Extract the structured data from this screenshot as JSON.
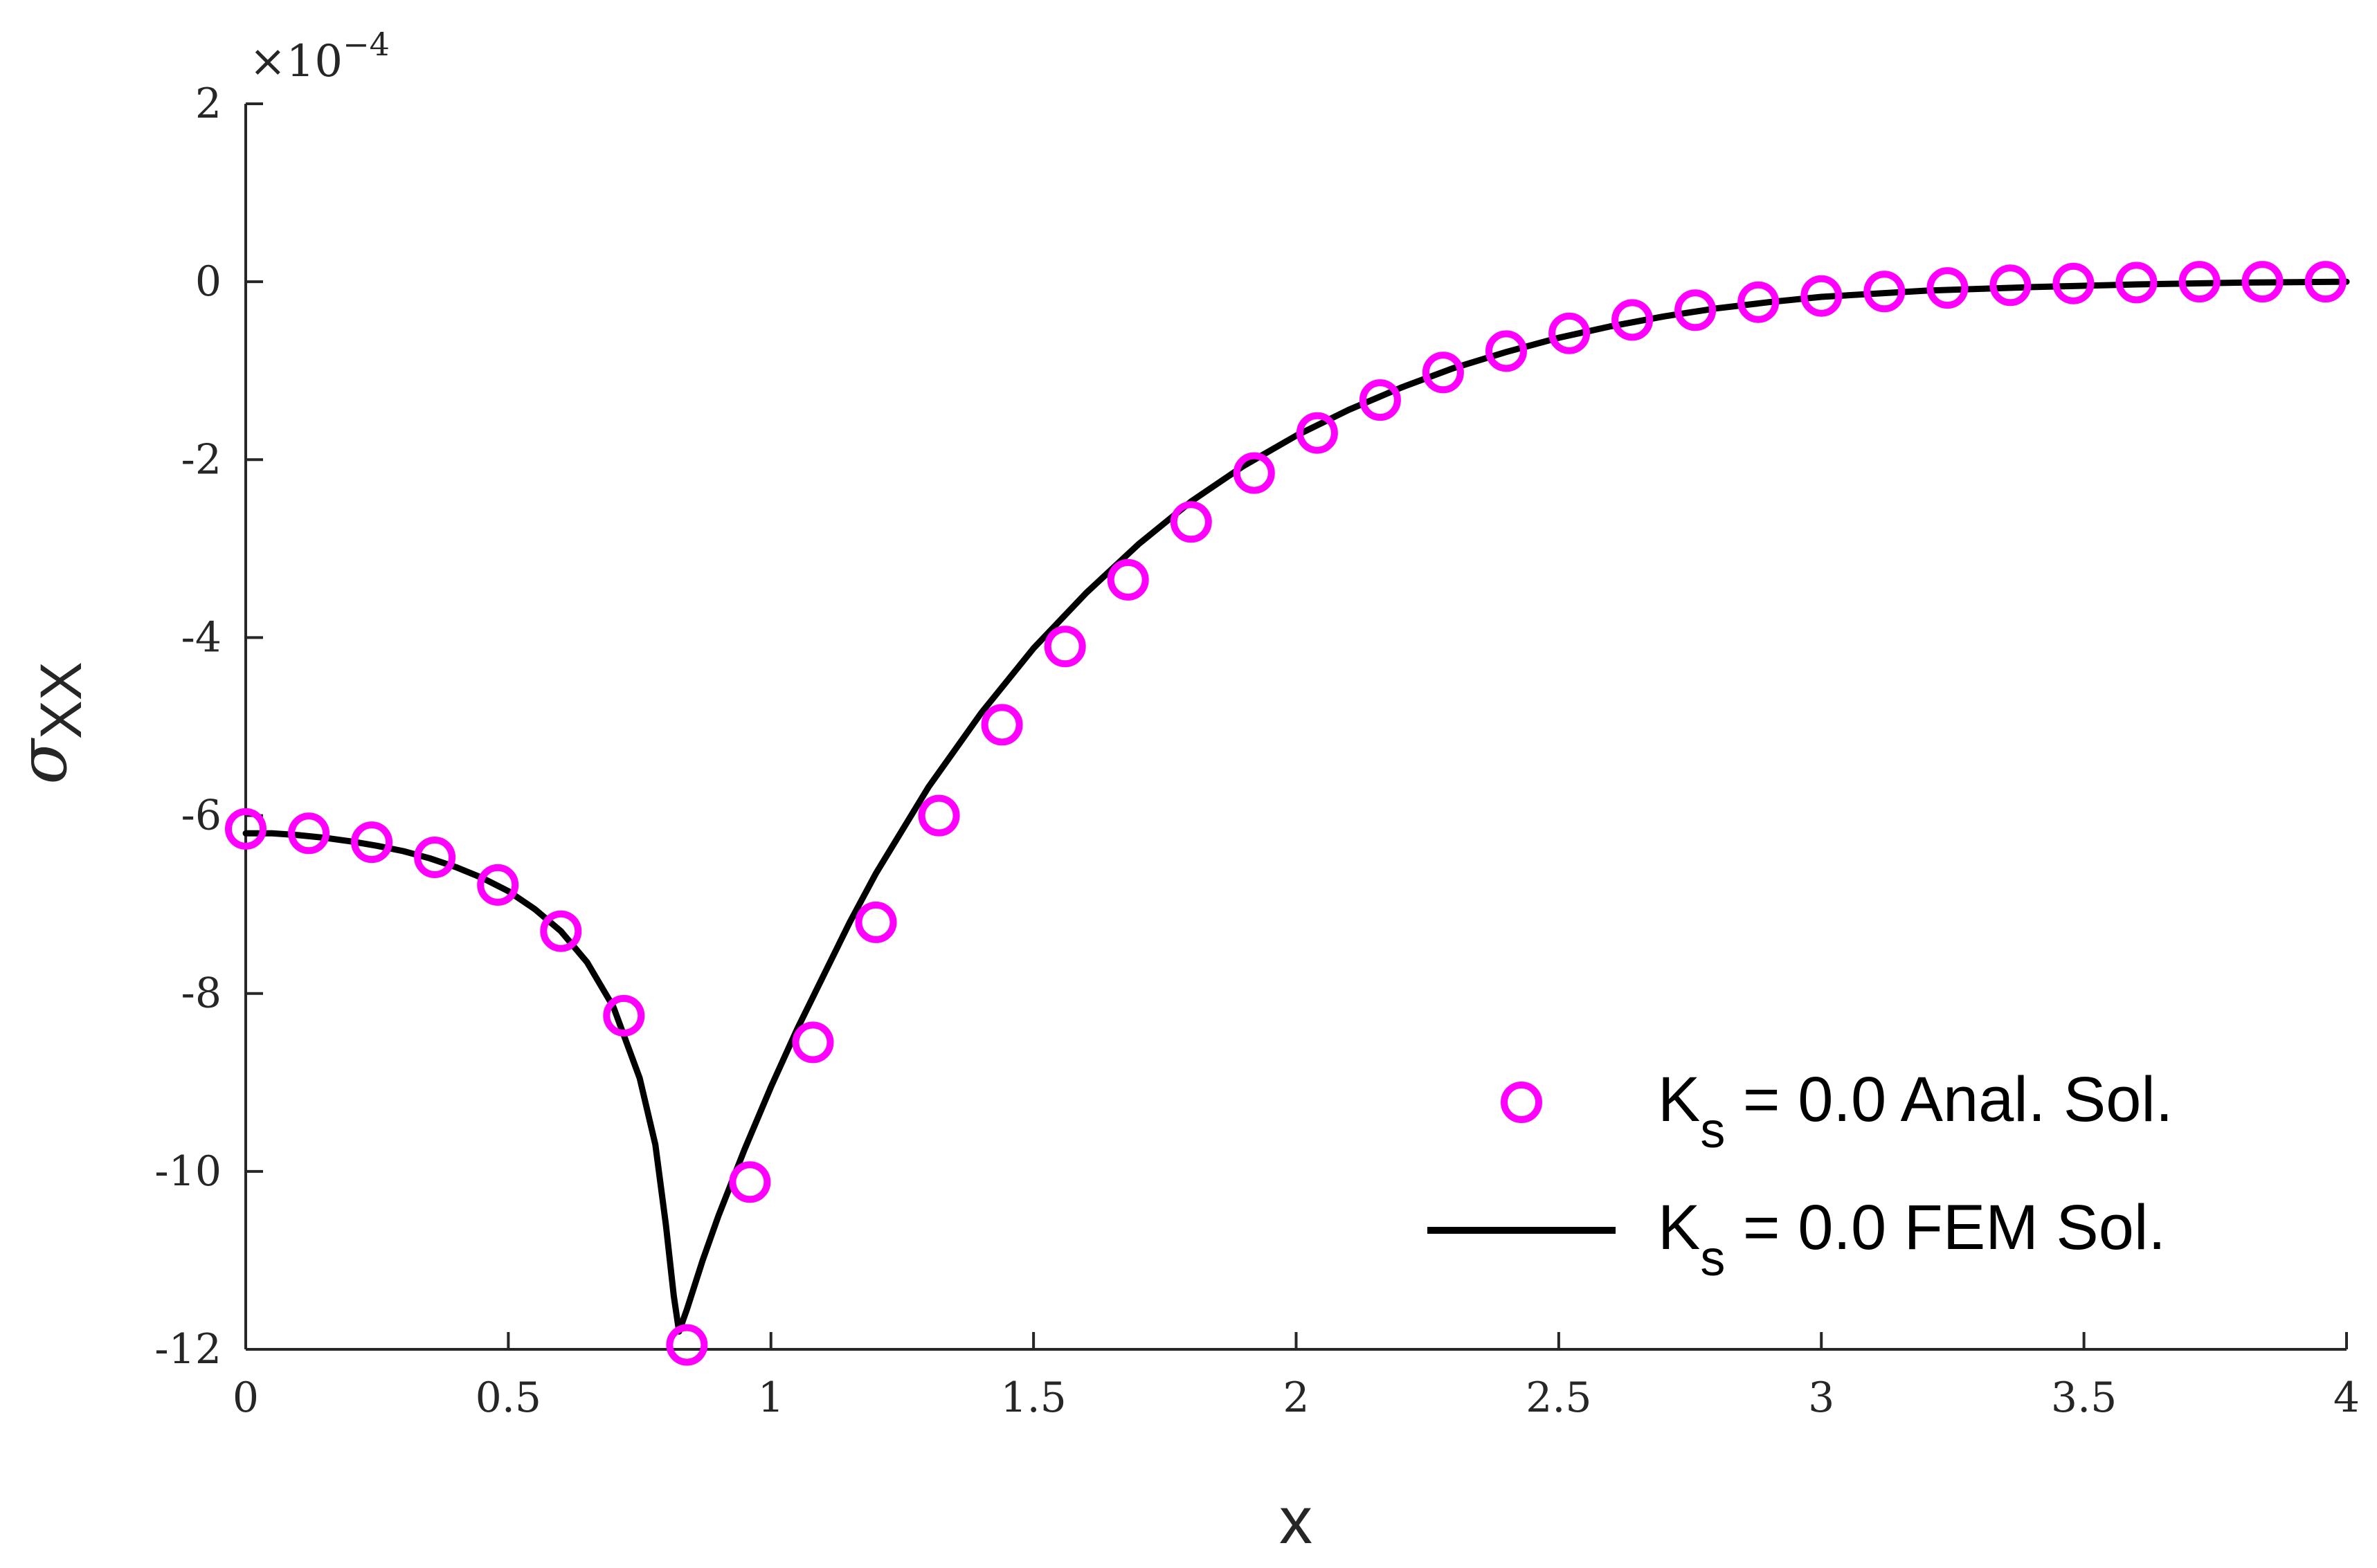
{
  "chart_data": {
    "type": "line",
    "title": "",
    "xlabel": "x",
    "ylabel": "σ",
    "ylabel_sub": "XX",
    "y_multiplier": "×10",
    "y_multiplier_exp": "−4",
    "xlim": [
      0,
      4
    ],
    "ylim": [
      -12,
      2
    ],
    "x_ticks": [
      0,
      0.5,
      1,
      1.5,
      2,
      2.5,
      3,
      3.5,
      4
    ],
    "x_tick_labels": [
      "0",
      "0.5",
      "1",
      "1.5",
      "2",
      "2.5",
      "3",
      "3.5",
      "4"
    ],
    "y_ticks": [
      -12,
      -10,
      -8,
      -6,
      -4,
      -2,
      0,
      2
    ],
    "y_tick_labels": [
      "-12",
      "-10",
      "-8",
      "-6",
      "-4",
      "-2",
      "0",
      "2"
    ],
    "grid": false,
    "legend_position": "bottom-right",
    "series": [
      {
        "name": "K_s = 0.0 Anal. Sol.",
        "legend_main": "K",
        "legend_sub": "s",
        "legend_rest": " = 0.0 Anal. Sol.",
        "marker": "circle",
        "color": "#FF00FF",
        "x": [
          0,
          0.12,
          0.24,
          0.36,
          0.48,
          0.6,
          0.72,
          0.84,
          0.96,
          1.08,
          1.2,
          1.32,
          1.44,
          1.56,
          1.68,
          1.8,
          1.92,
          2.04,
          2.16,
          2.28,
          2.4,
          2.52,
          2.64,
          2.76,
          2.88,
          3.0,
          3.12,
          3.24,
          3.36,
          3.48,
          3.6,
          3.72,
          3.84,
          3.96
        ],
        "y": [
          -6.15,
          -6.2,
          -6.3,
          -6.47,
          -6.78,
          -7.3,
          -8.25,
          -11.95,
          -10.12,
          -8.55,
          -7.2,
          -6.0,
          -4.98,
          -4.1,
          -3.35,
          -2.7,
          -2.15,
          -1.7,
          -1.33,
          -1.02,
          -0.78,
          -0.58,
          -0.43,
          -0.32,
          -0.23,
          -0.16,
          -0.11,
          -0.07,
          -0.04,
          -0.02,
          -0.01,
          0,
          0,
          0
        ]
      },
      {
        "name": "K_s = 0.0 FEM Sol.",
        "legend_main": "K",
        "legend_sub": "s",
        "legend_rest": " = 0.0 FEM Sol.",
        "line": "solid",
        "color": "#000000",
        "x": [
          0,
          0.05,
          0.1,
          0.15,
          0.2,
          0.25,
          0.3,
          0.35,
          0.4,
          0.45,
          0.5,
          0.55,
          0.6,
          0.65,
          0.7,
          0.75,
          0.78,
          0.8,
          0.815,
          0.825,
          0.84,
          0.87,
          0.9,
          0.95,
          1.0,
          1.05,
          1.1,
          1.15,
          1.2,
          1.3,
          1.4,
          1.5,
          1.6,
          1.7,
          1.8,
          1.9,
          2.0,
          2.1,
          2.2,
          2.3,
          2.4,
          2.5,
          2.6,
          2.7,
          2.8,
          2.9,
          3.0,
          3.2,
          3.4,
          3.6,
          3.8,
          4.0
        ],
        "y": [
          -6.2,
          -6.2,
          -6.22,
          -6.25,
          -6.29,
          -6.34,
          -6.4,
          -6.48,
          -6.58,
          -6.7,
          -6.85,
          -7.05,
          -7.3,
          -7.65,
          -8.15,
          -8.95,
          -9.7,
          -10.6,
          -11.4,
          -11.8,
          -11.55,
          -11.0,
          -10.5,
          -9.75,
          -9.05,
          -8.4,
          -7.8,
          -7.2,
          -6.65,
          -5.68,
          -4.85,
          -4.12,
          -3.5,
          -2.95,
          -2.47,
          -2.07,
          -1.73,
          -1.44,
          -1.19,
          -0.97,
          -0.79,
          -0.63,
          -0.5,
          -0.39,
          -0.3,
          -0.23,
          -0.17,
          -0.1,
          -0.06,
          -0.03,
          -0.01,
          0
        ]
      }
    ]
  }
}
